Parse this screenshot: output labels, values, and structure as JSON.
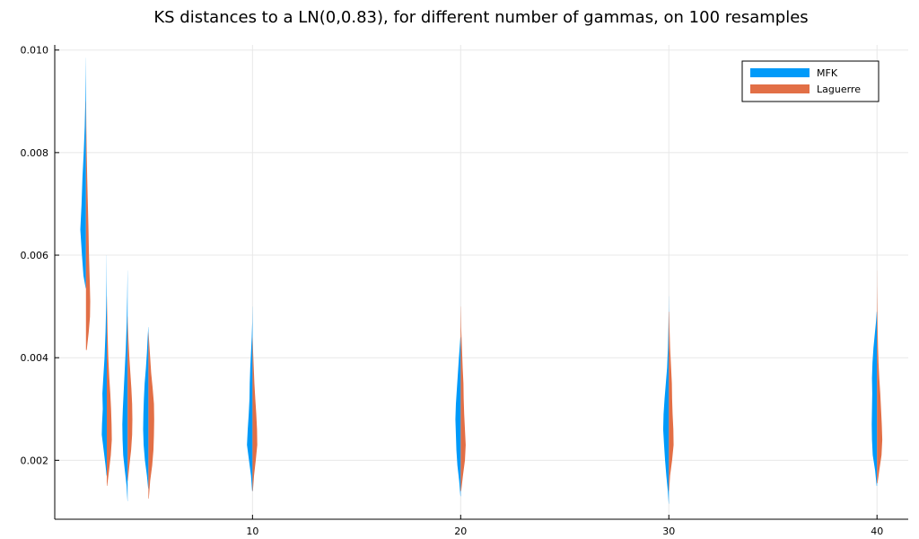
{
  "chart_data": {
    "type": "violin",
    "title": "KS distances to a LN(0,0.83), for different number of gammas, on 100 resamples",
    "xlabel": "",
    "ylabel": "",
    "xlim": [
      0.5,
      41.5
    ],
    "ylim": [
      0.00085,
      0.0101
    ],
    "xticks": [
      10,
      20,
      30,
      40
    ],
    "xtick_labels": [
      "10",
      "20",
      "30",
      "40"
    ],
    "yticks": [
      0.002,
      0.004,
      0.006,
      0.008,
      0.01
    ],
    "ytick_labels": [
      "0.002",
      "0.004",
      "0.006",
      "0.008",
      "0.010"
    ],
    "grid": true,
    "legend_position": "top-right",
    "series": [
      {
        "name": "MFK",
        "color": "#009af9",
        "side": "left",
        "violins": [
          {
            "x": 2,
            "profile": [
              [
                0.00535,
                0.02
              ],
              [
                0.0056,
                0.2
              ],
              [
                0.006,
                0.32
              ],
              [
                0.0065,
                0.45
              ],
              [
                0.007,
                0.35
              ],
              [
                0.0075,
                0.28
              ],
              [
                0.008,
                0.18
              ],
              [
                0.0085,
                0.1
              ],
              [
                0.009,
                0.05
              ],
              [
                0.0095,
                0.02
              ],
              [
                0.00985,
                0.005
              ]
            ]
          },
          {
            "x": 3,
            "profile": [
              [
                0.0017,
                0.02
              ],
              [
                0.0019,
                0.1
              ],
              [
                0.0022,
                0.25
              ],
              [
                0.0025,
                0.4
              ],
              [
                0.0027,
                0.38
              ],
              [
                0.003,
                0.32
              ],
              [
                0.0033,
                0.35
              ],
              [
                0.0036,
                0.28
              ],
              [
                0.004,
                0.18
              ],
              [
                0.0045,
                0.1
              ],
              [
                0.005,
                0.05
              ],
              [
                0.0055,
                0.02
              ],
              [
                0.006,
                0.005
              ]
            ]
          },
          {
            "x": 4,
            "profile": [
              [
                0.0012,
                0.01
              ],
              [
                0.0015,
                0.08
              ],
              [
                0.0018,
                0.22
              ],
              [
                0.0021,
                0.35
              ],
              [
                0.0024,
                0.4
              ],
              [
                0.0027,
                0.42
              ],
              [
                0.003,
                0.38
              ],
              [
                0.0034,
                0.3
              ],
              [
                0.0038,
                0.22
              ],
              [
                0.0042,
                0.14
              ],
              [
                0.0047,
                0.07
              ],
              [
                0.0052,
                0.03
              ],
              [
                0.0057,
                0.005
              ]
            ]
          },
          {
            "x": 5,
            "profile": [
              [
                0.00145,
                0.02
              ],
              [
                0.0017,
                0.12
              ],
              [
                0.002,
                0.28
              ],
              [
                0.0023,
                0.38
              ],
              [
                0.0026,
                0.42
              ],
              [
                0.0029,
                0.4
              ],
              [
                0.0032,
                0.36
              ],
              [
                0.0035,
                0.3
              ],
              [
                0.0038,
                0.2
              ],
              [
                0.0041,
                0.12
              ],
              [
                0.0044,
                0.06
              ],
              [
                0.0046,
                0.01
              ]
            ]
          },
          {
            "x": 10,
            "profile": [
              [
                0.0014,
                0.03
              ],
              [
                0.0017,
                0.12
              ],
              [
                0.002,
                0.28
              ],
              [
                0.0023,
                0.44
              ],
              [
                0.0026,
                0.38
              ],
              [
                0.0029,
                0.3
              ],
              [
                0.0032,
                0.24
              ],
              [
                0.0035,
                0.22
              ],
              [
                0.0038,
                0.18
              ],
              [
                0.0041,
                0.12
              ],
              [
                0.0044,
                0.06
              ],
              [
                0.0047,
                0.02
              ],
              [
                0.005,
                0.005
              ]
            ]
          },
          {
            "x": 20,
            "profile": [
              [
                0.0013,
                0.02
              ],
              [
                0.0016,
                0.12
              ],
              [
                0.0019,
                0.26
              ],
              [
                0.0022,
                0.34
              ],
              [
                0.0025,
                0.38
              ],
              [
                0.0028,
                0.42
              ],
              [
                0.0031,
                0.38
              ],
              [
                0.0034,
                0.3
              ],
              [
                0.0037,
                0.22
              ],
              [
                0.004,
                0.14
              ],
              [
                0.0042,
                0.08
              ],
              [
                0.0044,
                0.02
              ]
            ]
          },
          {
            "x": 30,
            "profile": [
              [
                0.00115,
                0.01
              ],
              [
                0.0014,
                0.08
              ],
              [
                0.0017,
                0.2
              ],
              [
                0.002,
                0.3
              ],
              [
                0.0023,
                0.38
              ],
              [
                0.0026,
                0.45
              ],
              [
                0.0029,
                0.42
              ],
              [
                0.0032,
                0.34
              ],
              [
                0.0035,
                0.24
              ],
              [
                0.0038,
                0.14
              ],
              [
                0.0042,
                0.07
              ],
              [
                0.0046,
                0.03
              ],
              [
                0.005,
                0.01
              ],
              [
                0.0052,
                0.005
              ]
            ]
          },
          {
            "x": 40,
            "profile": [
              [
                0.0015,
                0.03
              ],
              [
                0.0018,
                0.15
              ],
              [
                0.0021,
                0.34
              ],
              [
                0.0024,
                0.4
              ],
              [
                0.0027,
                0.42
              ],
              [
                0.003,
                0.4
              ],
              [
                0.0033,
                0.38
              ],
              [
                0.0036,
                0.4
              ],
              [
                0.0039,
                0.36
              ],
              [
                0.0042,
                0.28
              ],
              [
                0.0045,
                0.16
              ],
              [
                0.0047,
                0.08
              ],
              [
                0.0049,
                0.02
              ]
            ]
          }
        ]
      },
      {
        "name": "Laguerre",
        "color": "#e26f46",
        "side": "right",
        "violins": [
          {
            "x": 2,
            "profile": [
              [
                0.00415,
                0.06
              ],
              [
                0.0045,
                0.22
              ],
              [
                0.0048,
                0.32
              ],
              [
                0.0051,
                0.34
              ],
              [
                0.0055,
                0.3
              ],
              [
                0.006,
                0.24
              ],
              [
                0.0065,
                0.2
              ],
              [
                0.007,
                0.15
              ],
              [
                0.0075,
                0.1
              ],
              [
                0.008,
                0.06
              ],
              [
                0.0085,
                0.03
              ],
              [
                0.009,
                0.01
              ]
            ]
          },
          {
            "x": 3,
            "profile": [
              [
                0.0015,
                0.03
              ],
              [
                0.0018,
                0.18
              ],
              [
                0.0021,
                0.32
              ],
              [
                0.0024,
                0.4
              ],
              [
                0.0027,
                0.38
              ],
              [
                0.003,
                0.34
              ],
              [
                0.0033,
                0.28
              ],
              [
                0.0036,
                0.2
              ],
              [
                0.004,
                0.12
              ],
              [
                0.0045,
                0.06
              ],
              [
                0.005,
                0.02
              ],
              [
                0.0052,
                0.005
              ]
            ]
          },
          {
            "x": 4,
            "profile": [
              [
                0.0016,
                0.02
              ],
              [
                0.0019,
                0.14
              ],
              [
                0.0022,
                0.28
              ],
              [
                0.0025,
                0.36
              ],
              [
                0.0028,
                0.38
              ],
              [
                0.0031,
                0.36
              ],
              [
                0.0034,
                0.3
              ],
              [
                0.0037,
                0.22
              ],
              [
                0.004,
                0.14
              ],
              [
                0.0043,
                0.08
              ],
              [
                0.0046,
                0.03
              ],
              [
                0.0048,
                0.01
              ]
            ]
          },
          {
            "x": 5,
            "profile": [
              [
                0.00125,
                0.03
              ],
              [
                0.0016,
                0.14
              ],
              [
                0.0019,
                0.3
              ],
              [
                0.0022,
                0.4
              ],
              [
                0.0025,
                0.44
              ],
              [
                0.0028,
                0.46
              ],
              [
                0.0031,
                0.44
              ],
              [
                0.0034,
                0.34
              ],
              [
                0.0037,
                0.22
              ],
              [
                0.004,
                0.14
              ],
              [
                0.0043,
                0.06
              ],
              [
                0.0045,
                0.01
              ]
            ]
          },
          {
            "x": 10,
            "profile": [
              [
                0.0014,
                0.03
              ],
              [
                0.0017,
                0.12
              ],
              [
                0.002,
                0.26
              ],
              [
                0.0023,
                0.38
              ],
              [
                0.0026,
                0.36
              ],
              [
                0.0029,
                0.3
              ],
              [
                0.0032,
                0.22
              ],
              [
                0.0035,
                0.15
              ],
              [
                0.0038,
                0.1
              ],
              [
                0.0041,
                0.05
              ],
              [
                0.0044,
                0.01
              ]
            ]
          },
          {
            "x": 20,
            "profile": [
              [
                0.0014,
                0.04
              ],
              [
                0.0017,
                0.18
              ],
              [
                0.002,
                0.34
              ],
              [
                0.0023,
                0.4
              ],
              [
                0.0026,
                0.34
              ],
              [
                0.0029,
                0.28
              ],
              [
                0.0032,
                0.24
              ],
              [
                0.0035,
                0.22
              ],
              [
                0.0038,
                0.16
              ],
              [
                0.0042,
                0.1
              ],
              [
                0.0046,
                0.04
              ],
              [
                0.005,
                0.01
              ]
            ]
          },
          {
            "x": 30,
            "profile": [
              [
                0.0014,
                0.02
              ],
              [
                0.0017,
                0.1
              ],
              [
                0.002,
                0.26
              ],
              [
                0.0023,
                0.38
              ],
              [
                0.0026,
                0.36
              ],
              [
                0.0029,
                0.3
              ],
              [
                0.0032,
                0.26
              ],
              [
                0.0035,
                0.24
              ],
              [
                0.0038,
                0.18
              ],
              [
                0.0042,
                0.1
              ],
              [
                0.0046,
                0.05
              ],
              [
                0.0049,
                0.02
              ]
            ]
          },
          {
            "x": 40,
            "profile": [
              [
                0.00155,
                0.04
              ],
              [
                0.0018,
                0.18
              ],
              [
                0.0021,
                0.36
              ],
              [
                0.0024,
                0.42
              ],
              [
                0.0027,
                0.38
              ],
              [
                0.003,
                0.32
              ],
              [
                0.0033,
                0.26
              ],
              [
                0.0036,
                0.18
              ],
              [
                0.0039,
                0.12
              ],
              [
                0.0042,
                0.08
              ],
              [
                0.0046,
                0.05
              ],
              [
                0.005,
                0.03
              ],
              [
                0.0054,
                0.01
              ],
              [
                0.0057,
                0.005
              ]
            ]
          }
        ]
      }
    ]
  }
}
